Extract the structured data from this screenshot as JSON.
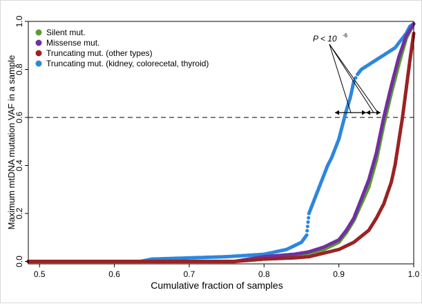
{
  "chart_data": {
    "type": "scatter",
    "xlabel": "Cumulative fraction of samples",
    "ylabel": "Maximum mtDNA mutation VAF in a sample",
    "xlim": [
      0.485,
      1.0
    ],
    "ylim": [
      -0.01,
      1.0
    ],
    "xticks": [
      "0.5",
      "0.6",
      "0.7",
      "0.8",
      "0.9",
      "1.0"
    ],
    "xtick_values": [
      0.5,
      0.6,
      0.7,
      0.8,
      0.9,
      1.0
    ],
    "yticks": [
      "0.0",
      "0.2",
      "0.4",
      "0.6",
      "0.8",
      "1.0"
    ],
    "ytick_values": [
      0.0,
      0.2,
      0.4,
      0.6,
      0.8,
      1.0
    ],
    "reference_line": {
      "y": 0.6,
      "style": "dashed"
    },
    "annotation": {
      "text": "P < 10",
      "superscript": "-6"
    },
    "legend_position": "top-left",
    "series": [
      {
        "name": "Silent mut.",
        "color": "#5a9e2f",
        "x": [
          0.485,
          0.76,
          0.8,
          0.84,
          0.86,
          0.88,
          0.9,
          0.91,
          0.92,
          0.93,
          0.94,
          0.95,
          0.96,
          0.97,
          0.98,
          0.99,
          1.0
        ],
        "y": [
          0.0,
          0.0,
          0.015,
          0.025,
          0.035,
          0.05,
          0.08,
          0.12,
          0.17,
          0.24,
          0.31,
          0.42,
          0.57,
          0.7,
          0.82,
          0.93,
          0.99
        ]
      },
      {
        "name": "Missense mut.",
        "color": "#7030a0",
        "x": [
          0.485,
          0.76,
          0.8,
          0.84,
          0.86,
          0.88,
          0.9,
          0.91,
          0.92,
          0.93,
          0.94,
          0.95,
          0.96,
          0.97,
          0.98,
          0.99,
          1.0
        ],
        "y": [
          0.0,
          0.0,
          0.02,
          0.03,
          0.04,
          0.06,
          0.09,
          0.13,
          0.18,
          0.26,
          0.34,
          0.45,
          0.6,
          0.73,
          0.85,
          0.94,
          0.99
        ]
      },
      {
        "name": "Truncating mut. (other types)",
        "color": "#9b2323",
        "x": [
          0.485,
          0.76,
          0.8,
          0.84,
          0.86,
          0.88,
          0.9,
          0.92,
          0.94,
          0.95,
          0.96,
          0.97,
          0.975,
          0.98,
          0.985,
          0.99,
          0.995,
          1.0
        ],
        "y": [
          0.0,
          0.0,
          0.01,
          0.015,
          0.02,
          0.035,
          0.05,
          0.08,
          0.13,
          0.18,
          0.24,
          0.33,
          0.4,
          0.5,
          0.6,
          0.72,
          0.84,
          0.95
        ]
      },
      {
        "name": "Truncating mut. (kidney, colorecetal, thyroid)",
        "color": "#2e86de",
        "x": [
          0.485,
          0.634,
          0.65,
          0.7,
          0.75,
          0.8,
          0.83,
          0.85,
          0.857,
          0.86,
          0.865,
          0.87,
          0.875,
          0.88,
          0.885,
          0.89,
          0.895,
          0.9,
          0.905,
          0.91,
          0.915,
          0.92,
          0.925,
          0.93,
          0.94,
          0.95,
          0.96,
          0.97,
          0.975,
          0.98,
          0.985,
          0.99,
          0.995,
          1.0
        ],
        "y": [
          0.0,
          0.0,
          0.01,
          0.015,
          0.02,
          0.03,
          0.05,
          0.08,
          0.11,
          0.2,
          0.24,
          0.28,
          0.32,
          0.36,
          0.4,
          0.43,
          0.47,
          0.51,
          0.57,
          0.63,
          0.68,
          0.75,
          0.78,
          0.8,
          0.82,
          0.84,
          0.86,
          0.88,
          0.89,
          0.91,
          0.93,
          0.95,
          0.98,
          0.99
        ]
      }
    ]
  }
}
